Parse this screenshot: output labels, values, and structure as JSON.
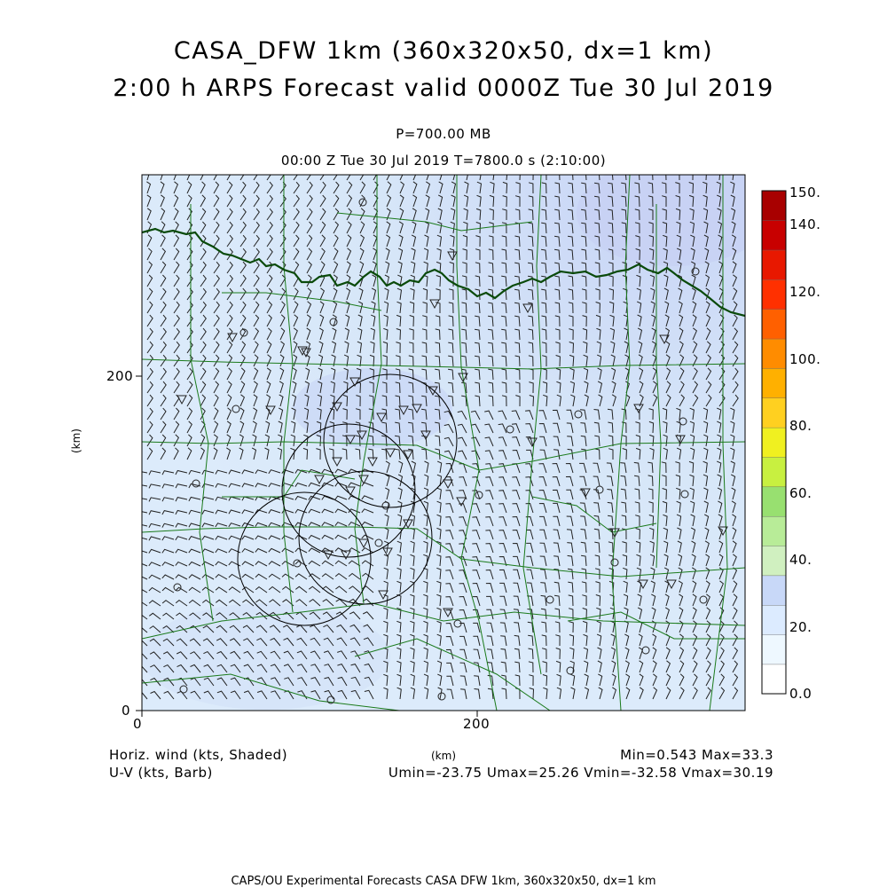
{
  "header": {
    "title_line1": "CASA_DFW 1km (360x320x50, dx=1 km)",
    "title_line2": "2:00 h ARPS Forecast valid 0000Z Tue 30 Jul 2019",
    "level": "P=700.00 MB",
    "time_info": "00:00 Z Tue 30 Jul 2019    T=7800.0 s (2:10:00)"
  },
  "axes": {
    "x_label": "(km)",
    "y_label": "(km)",
    "x_ticks": [
      "0",
      "200"
    ],
    "y_ticks": [
      "0",
      "200"
    ]
  },
  "colorbar": {
    "labels": [
      "150.",
      "140.",
      "120.",
      "100.",
      "80.",
      "60.",
      "40.",
      "20.",
      "0.0"
    ],
    "colors": [
      "#ffffff",
      "#eef8ff",
      "#dcebff",
      "#c8d8f8",
      "#d0f0c0",
      "#b8ec98",
      "#98e070",
      "#c8f040",
      "#f0f020",
      "#ffd020",
      "#ffb000",
      "#ff8c00",
      "#ff6000",
      "#ff3000",
      "#e81800",
      "#c80000",
      "#a80000"
    ]
  },
  "footer": {
    "left_line1": "Horiz. wind (kts, Shaded)",
    "left_line2": "U-V (kts, Barb)",
    "minmax": "Min=0.543 Max=33.3",
    "uv_minmax": "Umin=-23.75 Umax=25.26 Vmin=-32.58 Vmax=30.19",
    "x_unit": "(km)",
    "bottom_caption": "CAPS/OU Experimental Forecasts  CASA DFW 1km, 360x320x50, dx=1 km"
  },
  "legend_colors": {
    "county_lines": "#1a7a1a",
    "state_border": "#0a4a0a",
    "radar_rings": "#000000",
    "field_base": "#d6e6f8"
  }
}
